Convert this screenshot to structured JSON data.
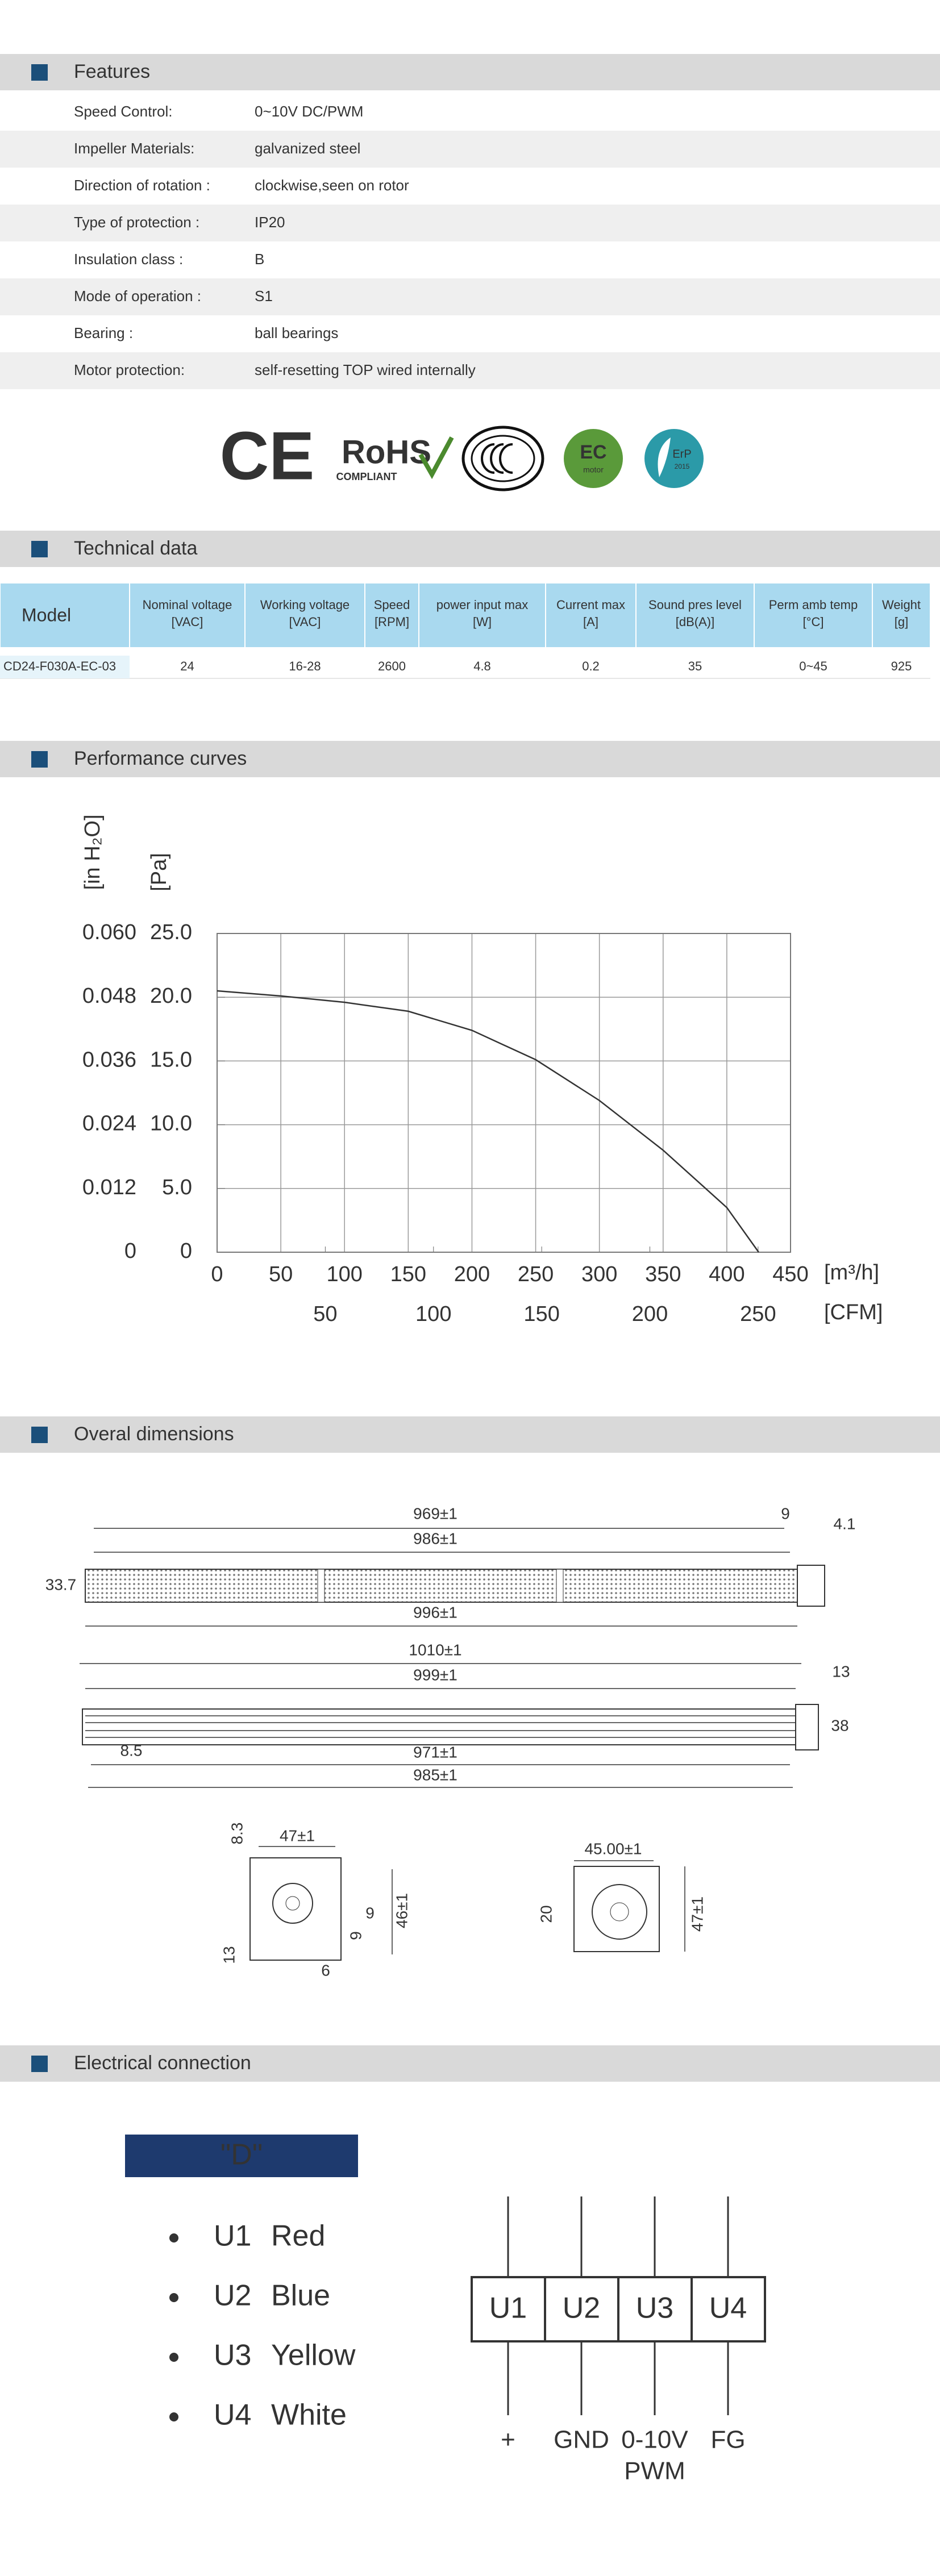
{
  "features": {
    "title": "Features",
    "rows": [
      [
        "Speed Control:",
        "0~10V DC/PWM"
      ],
      [
        "Impeller  Materials:",
        "galvanized steel"
      ],
      [
        "Direction  of  rotation :",
        "clockwise,seen on rotor"
      ],
      [
        "Type of protection :",
        "IP20"
      ],
      [
        "Insulation  class :",
        "B"
      ],
      [
        "Mode of operation :",
        "S1"
      ],
      [
        "Bearing :",
        "ball  bearings"
      ],
      [
        "Motor protection:",
        "self-resetting TOP wired internally"
      ]
    ]
  },
  "certifications": {
    "ce": "CE",
    "rohs": "RoHS",
    "rohs_note": "COMPLIANT",
    "ec": "EC",
    "ec_note": "motor",
    "erp": "ErP",
    "erp_year": "2015"
  },
  "technical_data": {
    "title": "Technical data",
    "columns": [
      [
        "Model"
      ],
      [
        "Nominal voltage",
        "[VAC]"
      ],
      [
        "Working voltage",
        "[VAC]"
      ],
      [
        "Speed",
        "[RPM]"
      ],
      [
        "power input max",
        "[W]"
      ],
      [
        "Current max",
        "[A]"
      ],
      [
        "Sound pres level",
        "[dB(A)]"
      ],
      [
        "Perm  amb  temp",
        "[°C]"
      ],
      [
        "Weight",
        "[g]"
      ]
    ],
    "rows": [
      [
        "CD24-F030A-EC-03",
        "24",
        "16-28",
        "2600",
        "4.8",
        "0.2",
        "35",
        "0~45",
        "925"
      ]
    ]
  },
  "performance_curves": {
    "title": "Performance curves",
    "chart": {
      "type": "line",
      "color": "#333333",
      "grid": true,
      "x": [
        0,
        50,
        100,
        150,
        200,
        250,
        300,
        350,
        400,
        425
      ],
      "values": [
        20.5,
        20.1,
        19.6,
        18.9,
        17.4,
        15.1,
        11.9,
        8,
        3.5,
        0
      ],
      "xlim": [
        0,
        450
      ],
      "xticks": [
        0,
        50,
        100,
        150,
        200,
        250,
        300,
        350,
        400,
        450
      ],
      "x_label": "[m³/h]",
      "x2lim": [
        0,
        265
      ],
      "x2ticks": [
        50,
        100,
        150,
        200,
        250
      ],
      "x2_label": "[CFM]",
      "ylim": [
        0,
        25
      ],
      "yticks": [
        0,
        {
          "value": 5,
          "label": "5.0"
        },
        {
          "value": 10,
          "label": "10.0"
        },
        {
          "value": 15,
          "label": "15.0"
        },
        {
          "value": 20,
          "label": "20.0"
        },
        {
          "value": 25,
          "label": "25.0"
        }
      ],
      "y_label": "[Pa]",
      "y2lim": [
        0,
        0.06
      ],
      "y2ticks": [
        0,
        0.012,
        0.024,
        0.036,
        0.048,
        {
          "value": 0.06,
          "label": "0.060"
        }
      ],
      "y2_label": "[in H₂O]"
    }
  },
  "dimensions": {
    "title": "Overal dimensions",
    "labels": [
      "969±1",
      "9",
      "986±1",
      "4.1",
      "33.7",
      "996±1",
      "1010±1",
      "999±1",
      "13",
      "38",
      "8.5",
      "971±1",
      "985±1",
      "8.3",
      "47±1",
      "9",
      "9",
      "46±1",
      "13",
      "6",
      "45.00±1",
      "20",
      "47±1"
    ]
  },
  "electrical": {
    "title": "Electrical connection",
    "variant": "\"D\"",
    "wires": [
      {
        "pin": "U1",
        "color": "Red"
      },
      {
        "pin": "U2",
        "color": "Blue"
      },
      {
        "pin": "U3",
        "color": "Yellow"
      },
      {
        "pin": "U4",
        "color": "White"
      }
    ],
    "terminals": [
      [
        "+"
      ],
      [
        "GND"
      ],
      [
        "0-10V",
        "PWM"
      ],
      [
        "FG"
      ]
    ]
  }
}
